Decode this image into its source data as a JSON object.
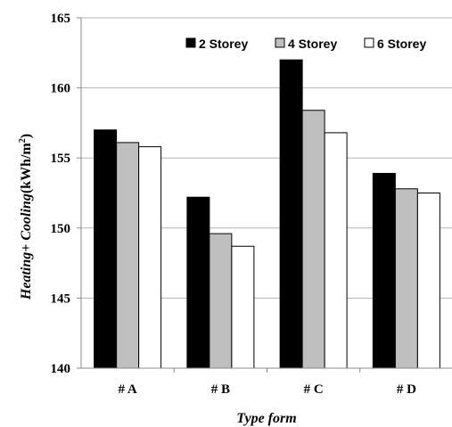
{
  "chart_data": {
    "type": "bar",
    "categories": [
      "# A",
      "# B",
      "# C",
      "# D"
    ],
    "series": [
      {
        "name": "2 Storey",
        "color": "#000000",
        "values": [
          157.0,
          152.2,
          162.0,
          153.9
        ]
      },
      {
        "name": "4 Storey",
        "color": "#bfbfbf",
        "values": [
          156.1,
          149.6,
          158.4,
          152.8
        ]
      },
      {
        "name": "6 Storey",
        "color": "#ffffff",
        "values": [
          155.8,
          148.7,
          156.8,
          152.5
        ]
      }
    ],
    "xlabel": "Type form",
    "ylabel": {
      "prefix": "Heating+ Cooling",
      "unit": "(kWh/m",
      "superscript": "2",
      "close": ")"
    },
    "ylim": [
      140,
      165
    ],
    "yticks": [
      140,
      145,
      150,
      155,
      160,
      165
    ],
    "grid": true,
    "legend_position": "top-right"
  }
}
